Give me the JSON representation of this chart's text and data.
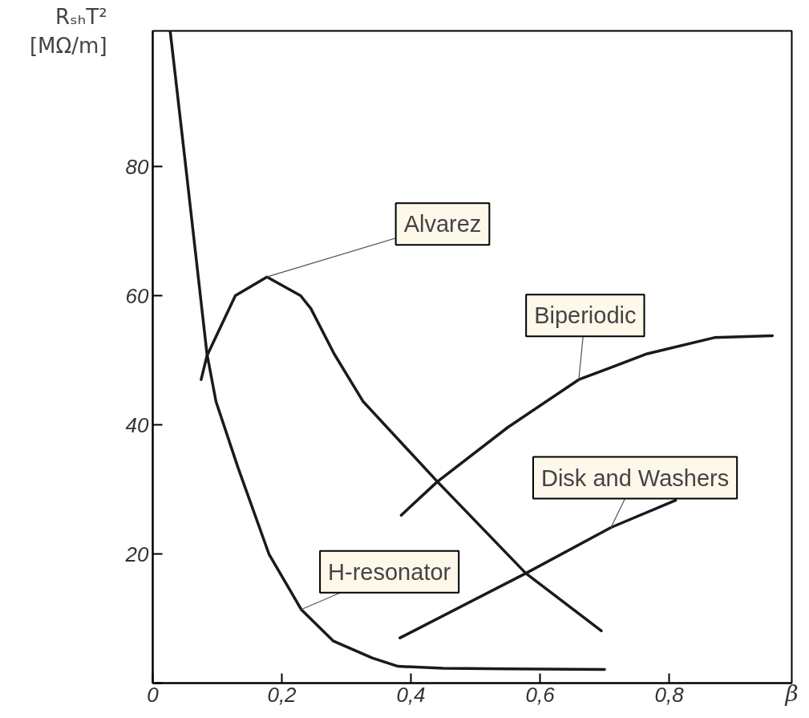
{
  "chart_data": {
    "type": "line",
    "ylabel": "RₛₕT² [MΩ/m]",
    "xlabel": "β",
    "xlim": [
      0,
      0.99
    ],
    "ylim": [
      0,
      101
    ],
    "xticks": [
      {
        "value": 0,
        "label": "0"
      },
      {
        "value": 0.2,
        "label": "0,2"
      },
      {
        "value": 0.4,
        "label": "0,4"
      },
      {
        "value": 0.6,
        "label": "0,6"
      },
      {
        "value": 0.8,
        "label": "0,8"
      }
    ],
    "yticks": [
      {
        "value": 0,
        "label": null
      },
      20,
      40,
      60,
      80
    ],
    "grid": false,
    "marker": "none",
    "line_style": "solid",
    "series": [
      {
        "color": "#1a1a1a",
        "x": [
          0.027,
          0.05,
          0.084,
          0.098,
          0.132,
          0.18,
          0.23,
          0.28,
          0.34,
          0.38,
          0.45,
          0.55,
          0.7
        ],
        "values": [
          101,
          81,
          51,
          43.6,
          33.4,
          20,
          11.4,
          6.5,
          3.9,
          2.6,
          2.3,
          2.2,
          2.1
        ]
      },
      {
        "color": "#1a1a1a",
        "x": [
          0.075,
          0.084,
          0.128,
          0.177,
          0.229,
          0.245,
          0.281,
          0.326,
          0.441,
          0.578,
          0.695
        ],
        "values": [
          47,
          50.7,
          60,
          62.9,
          60,
          58,
          51,
          43.6,
          31.2,
          17,
          8.1
        ]
      },
      {
        "color": "#1a1a1a",
        "x": [
          0.385,
          0.441,
          0.55,
          0.66,
          0.766,
          0.87,
          0.96
        ],
        "values": [
          26,
          31.2,
          39.6,
          47,
          51,
          53.5,
          53.8
        ]
      },
      {
        "color": "#1a1a1a",
        "x": [
          0.383,
          0.578,
          0.71,
          0.81
        ],
        "values": [
          7,
          17,
          24.1,
          28.3
        ]
      }
    ],
    "annotations": [
      {
        "text": "Alvarez",
        "x": 0.177,
        "y": 62.9
      },
      {
        "text": "Biperiodic",
        "x": 0.66,
        "y": 47
      },
      {
        "text": "Disk and Washers",
        "x": 0.71,
        "y": 24.1
      },
      {
        "text": "H-resonator",
        "x": 0.23,
        "y": 11.4
      }
    ]
  }
}
